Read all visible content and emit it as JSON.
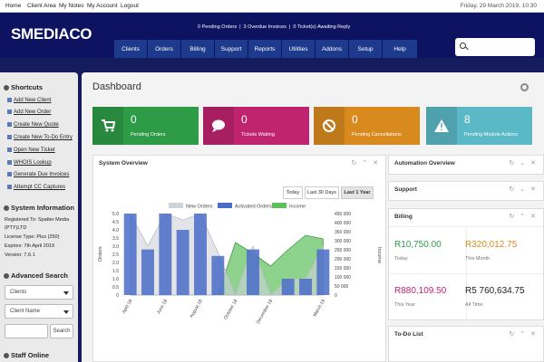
{
  "topbar": {
    "links": [
      "Home",
      "Client Area",
      "My Notes",
      "My Account",
      "Logout"
    ],
    "date": "Friday, 29 March 2019, 10:30"
  },
  "header": {
    "logo": "SMEDIACO",
    "alerts": [
      "0 Pending Orders",
      "|",
      "3 Overdue Invoices",
      "|",
      "0 Ticket(s) Awaiting Reply"
    ],
    "nav": [
      "Clients",
      "Orders",
      "Billing",
      "Support",
      "Reports",
      "Utilities",
      "Addons",
      "Setup",
      "Help"
    ]
  },
  "sidebar": {
    "shortcuts_title": "Shortcuts",
    "shortcuts": [
      "Add New Client",
      "Add New Order",
      "Create New Quote",
      "Create New To-Do Entry",
      "Open New Ticket",
      "WHOIS Lookup",
      "Generate Due Invoices",
      "Attempt CC Captures"
    ],
    "sysinfo_title": "System Information",
    "sysinfo": [
      "Registered To: Spatter Media",
      "(PTY)LTD",
      "License Type: Plus (250)",
      "Expires: 7th April 2019",
      "Version: 7.6.1"
    ],
    "adv_search_title": "Advanced Search",
    "search_type": "Clients",
    "search_field": "Client Name",
    "search_button": "Search",
    "staff_title": "Staff Online"
  },
  "dashboard": {
    "title": "Dashboard",
    "stats": [
      {
        "value": "0",
        "label": "Pending Orders",
        "color": "#2e9b47",
        "icon": "cart-icon"
      },
      {
        "value": "0",
        "label": "Tickets Waiting",
        "color": "#c0246f",
        "icon": "chat-icon"
      },
      {
        "value": "0",
        "label": "Pending Cancellations",
        "color": "#d88a1e",
        "icon": "ban-icon"
      },
      {
        "value": "8",
        "label": "Pending Module Actions",
        "color": "#5ab8c7",
        "icon": "warning-icon"
      }
    ],
    "system_overview": {
      "title": "System Overview",
      "ranges": [
        "Today",
        "Last 30 Days",
        "Last 1 Year"
      ],
      "active_range": "Last 1 Year"
    },
    "right_panels": {
      "automation": "Automation Overview",
      "support": "Support",
      "billing": "Billing",
      "todo": "To-Do List"
    },
    "billing": [
      {
        "value": "R10,750.00",
        "label": "Today",
        "color": "#2e9b47"
      },
      {
        "value": "R320,012.75",
        "label": "This Month",
        "color": "#d88a1e"
      },
      {
        "value": "R880,109.50",
        "label": "This Year",
        "color": "#c0246f"
      },
      {
        "value": "R5 760,634.75",
        "label": "All Time",
        "color": "#222222"
      }
    ]
  },
  "chart_data": {
    "type": "bar",
    "categories": [
      "April 18",
      "May 18",
      "June 18",
      "July 18",
      "August 18",
      "September 18",
      "October 18",
      "November 18",
      "December 18",
      "January 19",
      "February 19",
      "March 19"
    ],
    "x_tick_labels": [
      "April 18",
      "June 18",
      "August 18",
      "October 18",
      "December 18",
      "March 19"
    ],
    "series": [
      {
        "name": "New Orders",
        "values": [
          5.0,
          3.0,
          5.0,
          4.6,
          5.0,
          2.6,
          0,
          3.0,
          0,
          1.0,
          1.0,
          3.0
        ],
        "color": "#cfd2d8"
      },
      {
        "name": "Activated Orders",
        "values": [
          5.0,
          2.8,
          5.0,
          4.0,
          5.0,
          2.4,
          0,
          2.8,
          0,
          1.0,
          1.0,
          2.8
        ],
        "color": "#4a6cc8"
      },
      {
        "name": "Income",
        "values": [
          0,
          0,
          0,
          0,
          0,
          0,
          290000,
          230000,
          160000,
          250000,
          330000,
          310000
        ],
        "color": "#5cc15c"
      }
    ],
    "ylabel": "Orders",
    "y2label": "Income",
    "ylim": [
      0,
      5.0
    ],
    "y_ticks": [
      "5.0",
      "4.5",
      "4.0",
      "3.5",
      "3.0",
      "2.5",
      "2.0",
      "1.5",
      "1.0",
      "0.5",
      "0"
    ],
    "y2lim": [
      0,
      450000
    ],
    "y2_ticks": [
      "450 000",
      "400 000",
      "350 000",
      "300 000",
      "250 000",
      "200 000",
      "150 000",
      "100 000",
      "50 000",
      "0"
    ]
  }
}
